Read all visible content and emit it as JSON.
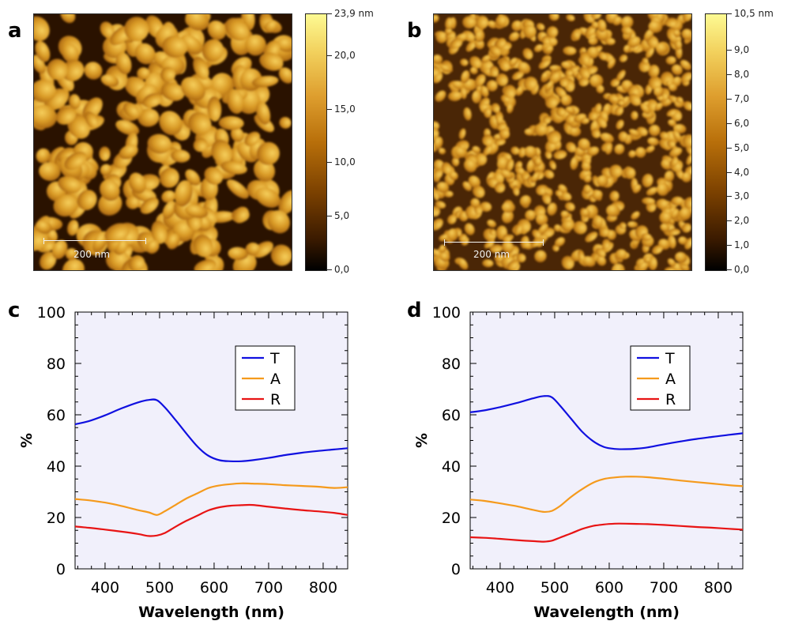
{
  "panels": {
    "a": {
      "letter": "a",
      "scalebar": "200 nm",
      "colorbar": {
        "max_label": "23,9 nm",
        "ticks": [
          "20,0",
          "15,0",
          "10,0",
          "5,0",
          "0,0"
        ],
        "tick_values": [
          20,
          15,
          10,
          5,
          0
        ],
        "max": 23.9
      }
    },
    "b": {
      "letter": "b",
      "scalebar": "200 nm",
      "colorbar": {
        "max_label": "10,5 nm",
        "ticks": [
          "9,0",
          "8,0",
          "7,0",
          "6,0",
          "5,0",
          "4,0",
          "3,0",
          "2,0",
          "1,0",
          "0,0"
        ],
        "tick_values": [
          9,
          8,
          7,
          6,
          5,
          4,
          3,
          2,
          1,
          0
        ],
        "max": 10.5
      }
    },
    "c": {
      "letter": "c"
    },
    "d": {
      "letter": "d"
    }
  },
  "colors": {
    "T": "#1010e0",
    "A": "#f59a1c",
    "R": "#e81414",
    "plot_bg": "#f1f0fb"
  },
  "chart_data": [
    {
      "type": "line",
      "panel": "c",
      "xlabel": "Wavelength (nm)",
      "ylabel": "%",
      "xlim": [
        345,
        845
      ],
      "ylim": [
        0,
        100
      ],
      "xticks": [
        400,
        500,
        600,
        700,
        800
      ],
      "yticks": [
        0,
        20,
        40,
        60,
        80,
        100
      ],
      "legend": "top-center",
      "x": [
        345,
        370,
        400,
        430,
        460,
        480,
        495,
        510,
        530,
        550,
        570,
        590,
        610,
        630,
        650,
        670,
        700,
        730,
        760,
        790,
        820,
        845
      ],
      "series": [
        {
          "name": "T",
          "values": [
            56.3,
            57.5,
            59.8,
            62.5,
            64.8,
            65.8,
            65.7,
            62.8,
            57.8,
            52.5,
            47.5,
            44.0,
            42.3,
            41.9,
            41.9,
            42.3,
            43.2,
            44.3,
            45.2,
            45.9,
            46.5,
            47.0
          ]
        },
        {
          "name": "A",
          "values": [
            27.2,
            26.7,
            25.8,
            24.5,
            22.9,
            22.0,
            21.0,
            22.5,
            25.0,
            27.5,
            29.5,
            31.5,
            32.5,
            33.0,
            33.3,
            33.2,
            33.0,
            32.6,
            32.3,
            32.0,
            31.5,
            31.8
          ]
        },
        {
          "name": "R",
          "values": [
            16.5,
            16.0,
            15.3,
            14.5,
            13.6,
            12.8,
            13.0,
            14.0,
            16.5,
            18.8,
            20.8,
            22.8,
            24.0,
            24.6,
            24.8,
            24.9,
            24.2,
            23.5,
            22.9,
            22.4,
            21.8,
            21.0
          ]
        }
      ]
    },
    {
      "type": "line",
      "panel": "d",
      "xlabel": "Wavelength (nm)",
      "ylabel": "%",
      "xlim": [
        345,
        845
      ],
      "ylim": [
        0,
        100
      ],
      "xticks": [
        400,
        500,
        600,
        700,
        800
      ],
      "yticks": [
        0,
        20,
        40,
        60,
        80,
        100
      ],
      "legend": "top-center",
      "x": [
        345,
        370,
        400,
        430,
        460,
        480,
        495,
        510,
        530,
        550,
        570,
        590,
        610,
        630,
        650,
        670,
        700,
        730,
        760,
        790,
        820,
        845
      ],
      "series": [
        {
          "name": "T",
          "values": [
            61.0,
            61.7,
            63.0,
            64.6,
            66.4,
            67.3,
            66.8,
            63.5,
            58.5,
            53.5,
            49.8,
            47.5,
            46.7,
            46.6,
            46.8,
            47.3,
            48.5,
            49.6,
            50.6,
            51.4,
            52.2,
            52.8
          ]
        },
        {
          "name": "A",
          "values": [
            27.0,
            26.5,
            25.5,
            24.4,
            23.0,
            22.2,
            22.6,
            24.5,
            28.0,
            31.0,
            33.5,
            35.0,
            35.6,
            35.9,
            35.9,
            35.7,
            35.1,
            34.4,
            33.8,
            33.2,
            32.6,
            32.2
          ]
        },
        {
          "name": "R",
          "values": [
            12.3,
            12.1,
            11.7,
            11.2,
            10.8,
            10.6,
            11.0,
            12.2,
            13.8,
            15.5,
            16.7,
            17.3,
            17.6,
            17.6,
            17.5,
            17.4,
            17.1,
            16.7,
            16.3,
            16.0,
            15.6,
            15.3
          ]
        }
      ]
    }
  ]
}
